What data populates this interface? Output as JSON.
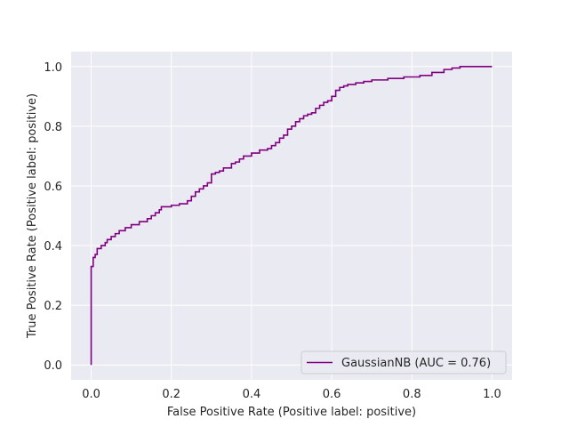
{
  "chart_data": {
    "type": "line",
    "title": "",
    "xlabel": "False Positive Rate (Positive label: positive)",
    "ylabel": "True Positive Rate (Positive label: positive)",
    "xlim": [
      -0.05,
      1.05
    ],
    "ylim": [
      -0.05,
      1.05
    ],
    "xticks": [
      0.0,
      0.2,
      0.4,
      0.6,
      0.8,
      1.0
    ],
    "yticks": [
      0.0,
      0.2,
      0.4,
      0.6,
      0.8,
      1.0
    ],
    "xtick_labels": [
      "0.0",
      "0.2",
      "0.4",
      "0.6",
      "0.8",
      "1.0"
    ],
    "ytick_labels": [
      "0.0",
      "0.2",
      "0.4",
      "0.6",
      "0.8",
      "1.0"
    ],
    "grid": true,
    "legend_position": "bottom-right",
    "series": [
      {
        "name": "GaussianNB (AUC = 0.76)",
        "color": "#800080",
        "drawstyle": "steps-post",
        "x": [
          0.0,
          0.0,
          0.005,
          0.01,
          0.015,
          0.025,
          0.035,
          0.04,
          0.05,
          0.06,
          0.07,
          0.085,
          0.1,
          0.12,
          0.14,
          0.15,
          0.16,
          0.17,
          0.175,
          0.2,
          0.22,
          0.24,
          0.25,
          0.26,
          0.27,
          0.28,
          0.29,
          0.3,
          0.31,
          0.32,
          0.33,
          0.35,
          0.36,
          0.37,
          0.38,
          0.4,
          0.42,
          0.44,
          0.45,
          0.46,
          0.47,
          0.48,
          0.49,
          0.5,
          0.51,
          0.52,
          0.53,
          0.54,
          0.55,
          0.56,
          0.57,
          0.58,
          0.59,
          0.6,
          0.61,
          0.62,
          0.63,
          0.64,
          0.66,
          0.68,
          0.7,
          0.74,
          0.78,
          0.82,
          0.85,
          0.88,
          0.9,
          0.92,
          0.95,
          1.0
        ],
        "y": [
          0.0,
          0.33,
          0.36,
          0.37,
          0.39,
          0.4,
          0.41,
          0.42,
          0.43,
          0.44,
          0.45,
          0.46,
          0.47,
          0.48,
          0.49,
          0.5,
          0.51,
          0.52,
          0.53,
          0.535,
          0.54,
          0.55,
          0.565,
          0.58,
          0.59,
          0.6,
          0.61,
          0.64,
          0.645,
          0.65,
          0.66,
          0.675,
          0.68,
          0.69,
          0.7,
          0.71,
          0.72,
          0.725,
          0.735,
          0.745,
          0.76,
          0.77,
          0.79,
          0.8,
          0.815,
          0.825,
          0.835,
          0.84,
          0.845,
          0.86,
          0.87,
          0.88,
          0.885,
          0.9,
          0.92,
          0.93,
          0.935,
          0.94,
          0.945,
          0.95,
          0.955,
          0.96,
          0.965,
          0.97,
          0.98,
          0.99,
          0.995,
          1.0,
          1.0,
          1.0
        ]
      }
    ]
  }
}
